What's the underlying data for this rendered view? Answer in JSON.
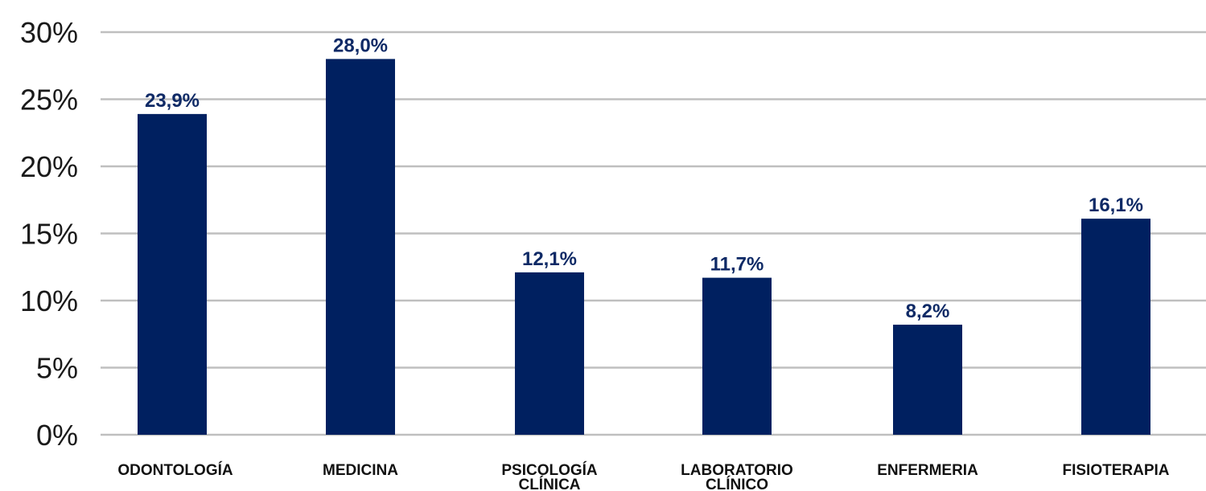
{
  "chart_data": {
    "type": "bar",
    "categories": [
      [
        "ODONTOLOGÍA"
      ],
      [
        "MEDICINA"
      ],
      [
        "PSICOLOGÍA",
        "CLÍNICA"
      ],
      [
        "LABORATORIO",
        "CLÍNICO"
      ],
      [
        "ENFERMERIA"
      ],
      [
        "FISIOTERAPIA"
      ]
    ],
    "values": [
      23.9,
      28.0,
      12.1,
      11.7,
      8.2,
      16.1
    ],
    "value_labels": [
      "23,9%",
      "28,0%",
      "12,1%",
      "11,7%",
      "8,2%",
      "16,1%"
    ],
    "title": "",
    "xlabel": "",
    "ylabel": "",
    "ylim": [
      0,
      30
    ],
    "yticks": [
      0,
      5,
      10,
      15,
      20,
      25,
      30
    ],
    "ytick_labels": [
      "0%",
      "5%",
      "10%",
      "15%",
      "20%",
      "25%",
      "30%"
    ],
    "grid": true,
    "legend": "none",
    "colors": {
      "bar": "#002060",
      "label": "#0f2a66",
      "grid": "#bfbfbf",
      "axis_text": "#1a1a1a"
    }
  }
}
